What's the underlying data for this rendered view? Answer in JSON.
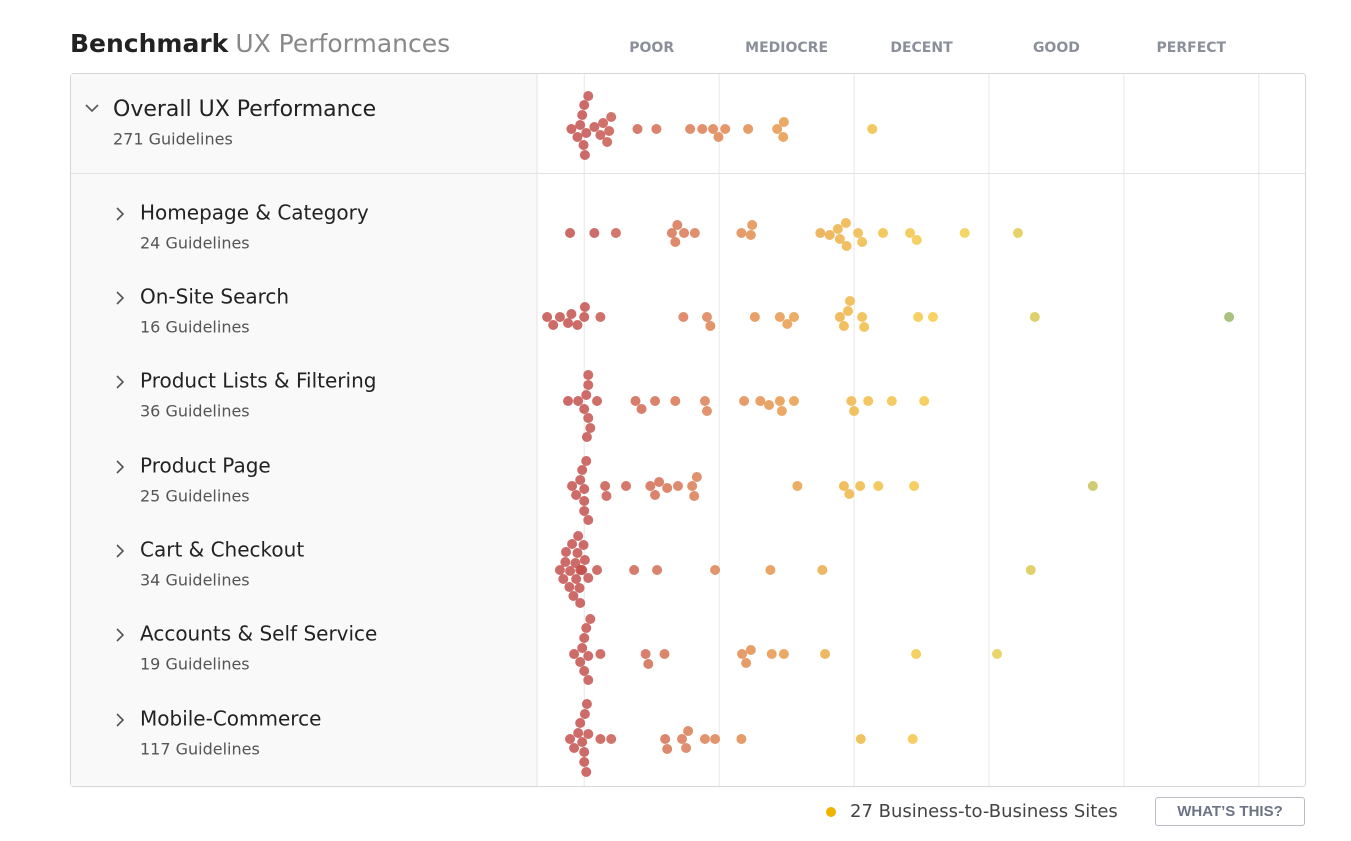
{
  "chart_data": {
    "type": "beeswarm",
    "title": "Benchmark",
    "subtitle": "UX Performances",
    "xlim": [
      -7,
      107
    ],
    "xticks": [
      {
        "value": 10,
        "label": "POOR"
      },
      {
        "value": 30,
        "label": "MEDIOCRE"
      },
      {
        "value": 50,
        "label": "DECENT"
      },
      {
        "value": 70,
        "label": "GOOD"
      },
      {
        "value": 90,
        "label": "PERFECT"
      }
    ],
    "xgrid": [
      0,
      20,
      40,
      60,
      80,
      100
    ],
    "color_stops": [
      {
        "value": 0,
        "color": "#c4514f"
      },
      {
        "value": 15,
        "color": "#d97a55"
      },
      {
        "value": 28,
        "color": "#e6954c"
      },
      {
        "value": 42,
        "color": "#f0bd45"
      },
      {
        "value": 55,
        "color": "#f5d04a"
      },
      {
        "value": 95,
        "color": "#9bb66a"
      }
    ],
    "series": [
      {
        "name": "Overall UX Performance",
        "count": "271 Guidelines",
        "values": [
          -1.9,
          -1.0,
          -0.6,
          -0.3,
          -0.1,
          0,
          0.1,
          0.3,
          0.6,
          1.5,
          2.4,
          2.8,
          3.4,
          3.7,
          4.0,
          7.9,
          10.7,
          15.7,
          17.5,
          19.1,
          19.9,
          20.9,
          24.3,
          28.6,
          29.5,
          29.6,
          42.7
        ]
      },
      {
        "name": "Homepage & Category",
        "count": "24 Guidelines",
        "values": [
          -2.1,
          1.5,
          4.7,
          13.0,
          13.5,
          13.8,
          14.8,
          16.4,
          23.3,
          24.7,
          24.9,
          35.0,
          36.4,
          37.6,
          37.9,
          38.8,
          38.9,
          40.6,
          41.2,
          44.3,
          48.3,
          49.3,
          56.4,
          64.3
        ]
      },
      {
        "name": "On-Site Search",
        "count": "16 Guidelines",
        "values": [
          -5.5,
          -4.6,
          -3.6,
          -2.4,
          -1.9,
          -1.0,
          0,
          0.1,
          2.4,
          14.7,
          18.2,
          18.7,
          25.3,
          29.0,
          30.1,
          31.1,
          37.9,
          38.5,
          39.1,
          39.4,
          41.2,
          41.5,
          49.5,
          51.7,
          66.8,
          95.6
        ]
      },
      {
        "name": "Product Lists & Filtering",
        "count": "36 Guidelines",
        "values": [
          -2.4,
          -0.9,
          0,
          0.3,
          0.6,
          0.6,
          0.6,
          0.9,
          1.9,
          0.4,
          7.6,
          8.5,
          10.5,
          13.5,
          17.9,
          18.2,
          23.7,
          26.1,
          27.4,
          29.0,
          29.3,
          31.1,
          39.6,
          40.0,
          42.1,
          45.6,
          50.4
        ]
      },
      {
        "name": "Product Page",
        "count": "25 Guidelines",
        "values": [
          -1.8,
          -1.2,
          -0.6,
          -0.3,
          0,
          0,
          0,
          0.3,
          0.6,
          3.1,
          3.3,
          6.2,
          9.8,
          10.5,
          11.1,
          12.3,
          13.9,
          16.0,
          16.3,
          16.7,
          31.6,
          38.5,
          39.3,
          40.9,
          43.6,
          48.9,
          75.4
        ]
      },
      {
        "name": "Cart & Checkout",
        "count": "34 Guidelines",
        "values": [
          -3.6,
          -3.1,
          -2.8,
          -2.7,
          -2.2,
          -2.1,
          -1.8,
          -1.6,
          -1.3,
          -1.2,
          -1.0,
          -0.9,
          -0.7,
          -0.6,
          -0.6,
          -0.4,
          -0.3,
          -0.1,
          0.1,
          0.6,
          1.9,
          7.4,
          10.8,
          19.4,
          27.6,
          35.3,
          66.2
        ]
      },
      {
        "name": "Accounts & Self Service",
        "count": "19 Guidelines",
        "values": [
          -1.5,
          -0.6,
          -0.3,
          0,
          0,
          0.3,
          0.6,
          0.6,
          0.9,
          2.4,
          9.1,
          9.5,
          11.9,
          23.4,
          24.0,
          24.7,
          27.8,
          29.6,
          35.7,
          49.2,
          61.2
        ]
      },
      {
        "name": "Mobile-Commerce",
        "count": "117 Guidelines",
        "values": [
          -2.1,
          -1.5,
          -0.9,
          -0.6,
          -0.3,
          0,
          0,
          0.1,
          0.3,
          0.4,
          0.6,
          2.4,
          4.0,
          12.0,
          12.3,
          14.5,
          15.1,
          15.4,
          17.9,
          19.4,
          23.3,
          41.0,
          48.7
        ]
      }
    ],
    "legend": "27 Business-to-Business Sites",
    "legend_color": "#f0b400"
  },
  "button": "WHAT’S THIS?"
}
